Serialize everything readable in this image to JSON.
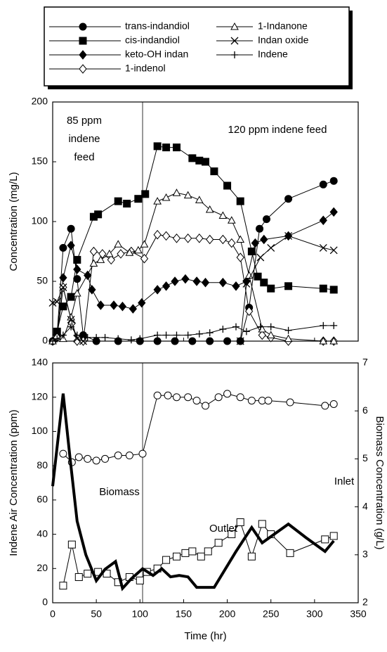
{
  "chart_data": [
    {
      "type": "line",
      "ylabel": "Concentration (mg/L)",
      "xlim": [
        0,
        350
      ],
      "xticks": [
        0,
        50,
        100,
        150,
        200,
        250,
        300,
        350
      ],
      "ylim": [
        0,
        200
      ],
      "yticks": [
        0,
        50,
        100,
        150,
        200
      ],
      "reference_x": 103,
      "annotations": [
        "85 ppm",
        "indene",
        "feed",
        "120 ppm indene feed"
      ],
      "series": [
        {
          "name": "trans-indandiol",
          "marker": "circle",
          "color": "#000000",
          "x": [
            0,
            5,
            12,
            21,
            28,
            35,
            50,
            75,
            100,
            120,
            140,
            160,
            180,
            200,
            215,
            225,
            237,
            245,
            270,
            310,
            322
          ],
          "values": [
            0,
            5,
            78,
            94,
            52,
            5,
            0,
            0,
            0,
            0,
            0,
            0,
            0,
            0,
            0,
            28,
            94,
            102,
            119,
            131,
            134
          ]
        },
        {
          "name": "cis-indandiol",
          "marker": "square",
          "color": "#000000",
          "x": [
            5,
            12,
            21,
            28,
            47,
            52,
            75,
            85,
            98,
            106,
            120,
            130,
            142,
            160,
            168,
            175,
            185,
            200,
            215,
            228,
            235,
            242,
            250,
            270,
            310,
            322
          ],
          "values": [
            8,
            29,
            37,
            68,
            104,
            106,
            117,
            115,
            119,
            123,
            163,
            162,
            162,
            153,
            151,
            150,
            142,
            130,
            117,
            75,
            54,
            49,
            44,
            46,
            44,
            43
          ]
        },
        {
          "name": "keto-OH indan",
          "marker": "diamond",
          "color": "#000000",
          "x": [
            0,
            5,
            12,
            21,
            28,
            40,
            45,
            55,
            70,
            80,
            92,
            102,
            120,
            130,
            140,
            152,
            165,
            175,
            195,
            210,
            222,
            232,
            242,
            270,
            310,
            322
          ],
          "values": [
            0,
            5,
            53,
            80,
            60,
            55,
            43,
            30,
            30,
            29,
            27,
            32,
            43,
            46,
            50,
            52,
            50,
            49,
            49,
            46,
            50,
            82,
            85,
            88,
            101,
            108
          ]
        },
        {
          "name": "1-indenol",
          "marker": "diamond-open",
          "color": "#000000",
          "x": [
            5,
            12,
            22,
            28,
            35,
            47,
            57,
            67,
            78,
            90,
            105,
            120,
            130,
            142,
            155,
            168,
            180,
            195,
            205,
            215,
            225,
            240,
            250,
            270,
            310,
            322
          ],
          "values": [
            3,
            45,
            15,
            0,
            0,
            75,
            73,
            68,
            73,
            75,
            69,
            89,
            88,
            86,
            86,
            86,
            85,
            85,
            82,
            70,
            25,
            5,
            3,
            0,
            0,
            0
          ]
        },
        {
          "name": "1-Indanone",
          "marker": "triangle-open",
          "color": "#000000",
          "x": [
            0,
            12,
            21,
            28,
            47,
            55,
            65,
            75,
            88,
            98,
            105,
            120,
            130,
            142,
            155,
            168,
            180,
            195,
            205,
            215,
            225,
            240,
            250,
            270,
            310,
            322
          ],
          "values": [
            0,
            2,
            20,
            40,
            65,
            68,
            73,
            81,
            74,
            76,
            81,
            117,
            120,
            124,
            122,
            118,
            110,
            105,
            101,
            85,
            55,
            10,
            5,
            2,
            0,
            0
          ]
        },
        {
          "name": "Indan oxide",
          "marker": "x",
          "color": "#000000",
          "x": [
            0,
            5,
            12,
            21,
            28,
            35,
            215,
            222,
            238,
            250,
            270,
            310,
            322
          ],
          "values": [
            32,
            33,
            45,
            18,
            2,
            0,
            0,
            48,
            70,
            78,
            88,
            78,
            76
          ]
        },
        {
          "name": "Indene",
          "marker": "plus",
          "color": "#000000",
          "x": [
            0,
            5,
            12,
            21,
            28,
            40,
            50,
            60,
            75,
            90,
            100,
            120,
            130,
            142,
            155,
            168,
            180,
            195,
            210,
            222,
            238,
            250,
            270,
            310,
            322
          ],
          "values": [
            0,
            2,
            5,
            12,
            5,
            3,
            3,
            3,
            2,
            1,
            2,
            5,
            5,
            5,
            5,
            6,
            7,
            10,
            12,
            8,
            12,
            12,
            9,
            13,
            13
          ]
        }
      ]
    },
    {
      "type": "line",
      "xlabel": "Time (hr)",
      "ylabel": "Indene Air Concentration (ppm)",
      "y2label": "Biomass Concentration (g/L)",
      "xlim": [
        0,
        350
      ],
      "xticks": [
        0,
        50,
        100,
        150,
        200,
        250,
        300,
        350
      ],
      "ylim": [
        0,
        140
      ],
      "yticks": [
        0,
        20,
        40,
        60,
        80,
        100,
        120,
        140
      ],
      "y2lim": [
        2,
        7
      ],
      "y2ticks": [
        2,
        3,
        4,
        5,
        6,
        7
      ],
      "reference_x": 103,
      "series": [
        {
          "name": "Inlet",
          "marker": "circle-open",
          "color": "#000000",
          "x": [
            12,
            22,
            30,
            40,
            50,
            60,
            75,
            88,
            103,
            120,
            132,
            142,
            155,
            165,
            175,
            190,
            200,
            215,
            228,
            240,
            247,
            272,
            312,
            322
          ],
          "values": [
            87,
            82,
            85,
            84,
            83,
            84,
            86,
            86,
            87,
            121,
            121,
            120,
            120,
            118,
            115,
            120,
            122,
            120,
            118,
            118,
            118,
            117,
            115,
            116
          ]
        },
        {
          "name": "Outlet",
          "marker": "square-open",
          "color": "#000000",
          "x": [
            12,
            22,
            30,
            40,
            52,
            62,
            75,
            88,
            100,
            108,
            120,
            130,
            142,
            152,
            160,
            170,
            178,
            190,
            205,
            215,
            228,
            240,
            250,
            272,
            312,
            322
          ],
          "values": [
            10,
            34,
            15,
            17,
            18,
            17,
            12,
            15,
            13,
            18,
            20,
            25,
            27,
            29,
            30,
            27,
            30,
            35,
            40,
            47,
            27,
            46,
            40,
            29,
            37,
            39
          ]
        },
        {
          "name": "Biomass",
          "marker": "none",
          "axis": "y2",
          "line_width": 4,
          "color": "#000000",
          "x": [
            0,
            12,
            20,
            28,
            38,
            50,
            60,
            72,
            80,
            90,
            103,
            115,
            125,
            135,
            145,
            155,
            165,
            185,
            210,
            228,
            240,
            270,
            290,
            312,
            322
          ],
          "values": [
            4.43,
            6.36,
            5.0,
            3.7,
            3.0,
            2.46,
            2.7,
            2.86,
            2.3,
            2.5,
            2.71,
            2.57,
            2.71,
            2.54,
            2.57,
            2.54,
            2.32,
            2.32,
            3.07,
            3.57,
            3.25,
            3.64,
            3.36,
            3.07,
            3.29
          ]
        }
      ]
    }
  ]
}
